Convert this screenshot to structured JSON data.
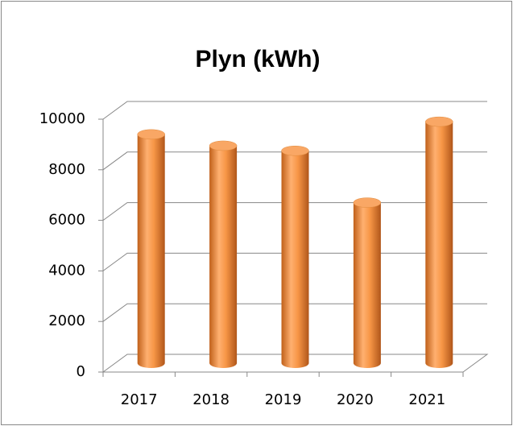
{
  "chart_data": {
    "type": "bar",
    "title": "Plyn (kWh)",
    "categories": [
      "2017",
      "2018",
      "2019",
      "2020",
      "2021"
    ],
    "values": [
      9050,
      8600,
      8400,
      6350,
      9550
    ],
    "color": "#f79646",
    "ylim": [
      0,
      10000
    ],
    "yticks": [
      0,
      2000,
      4000,
      6000,
      8000,
      10000
    ],
    "grid": true
  }
}
